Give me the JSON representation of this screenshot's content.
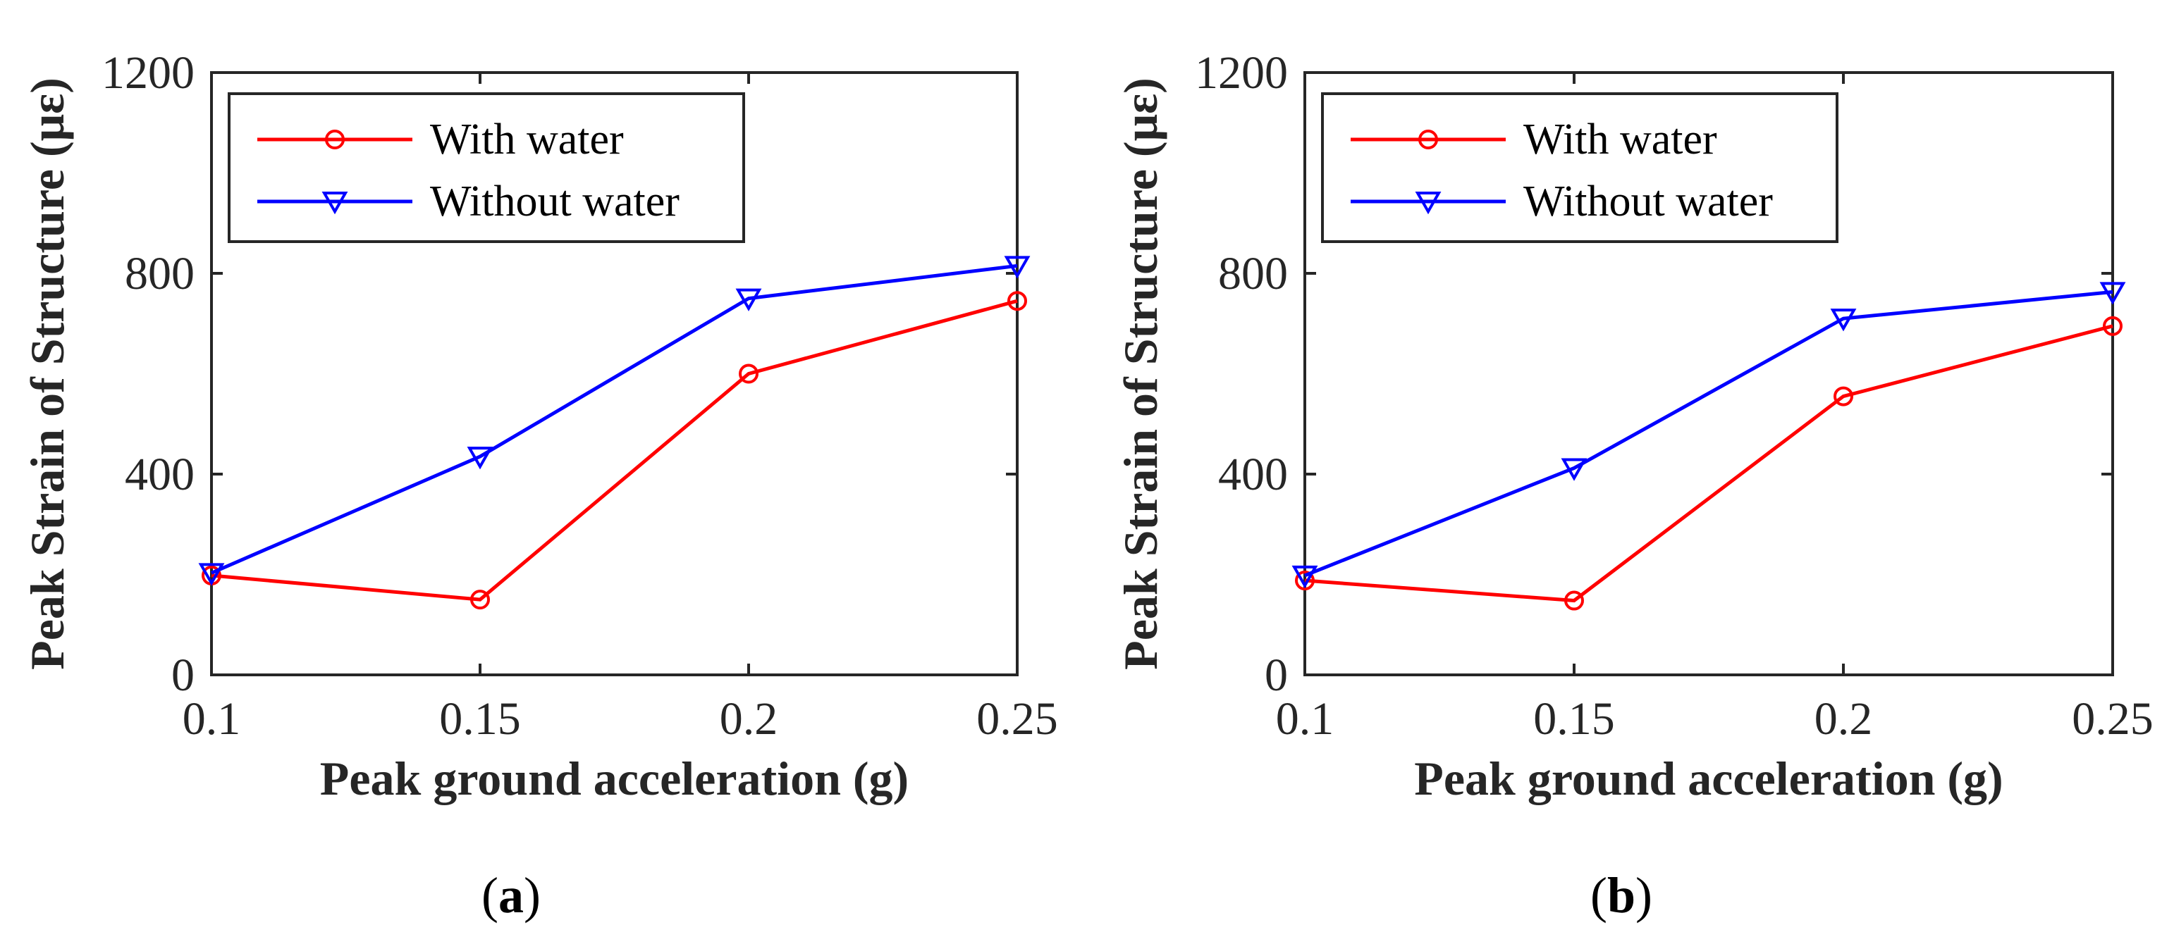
{
  "chart_data": [
    {
      "type": "line",
      "panel_label": "a",
      "xlabel": "Peak ground acceleration (g)",
      "ylabel": "Peak Strain of Structure (με)",
      "x": [
        0.1,
        0.15,
        0.2,
        0.25
      ],
      "x_tick_labels": [
        "0.1",
        "0.15",
        "0.2",
        "0.25"
      ],
      "y_tick_labels": [
        "0",
        "400",
        "800",
        "1200"
      ],
      "xlim": [
        0.1,
        0.25
      ],
      "ylim": [
        0,
        1200
      ],
      "grid": false,
      "legend_position": "top-left",
      "series": [
        {
          "name": "With water",
          "values": [
            198,
            150,
            600,
            745
          ],
          "color": "#ff0000",
          "marker": "circle"
        },
        {
          "name": "Without water",
          "values": [
            203,
            435,
            750,
            815
          ],
          "color": "#0000ff",
          "marker": "triangle-down"
        }
      ]
    },
    {
      "type": "line",
      "panel_label": "b",
      "xlabel": "Peak ground acceleration (g)",
      "ylabel": "Peak Strain of Structure (με)",
      "x": [
        0.1,
        0.15,
        0.2,
        0.25
      ],
      "x_tick_labels": [
        "0.1",
        "0.15",
        "0.2",
        "0.25"
      ],
      "y_tick_labels": [
        "0",
        "400",
        "800",
        "1200"
      ],
      "xlim": [
        0.1,
        0.25
      ],
      "ylim": [
        0,
        1200
      ],
      "grid": false,
      "legend_position": "top-left",
      "series": [
        {
          "name": "With water",
          "values": [
            188,
            148,
            555,
            695
          ],
          "color": "#ff0000",
          "marker": "circle"
        },
        {
          "name": "Without water",
          "values": [
            198,
            412,
            710,
            763
          ],
          "color": "#0000ff",
          "marker": "triangle-down"
        }
      ]
    }
  ]
}
